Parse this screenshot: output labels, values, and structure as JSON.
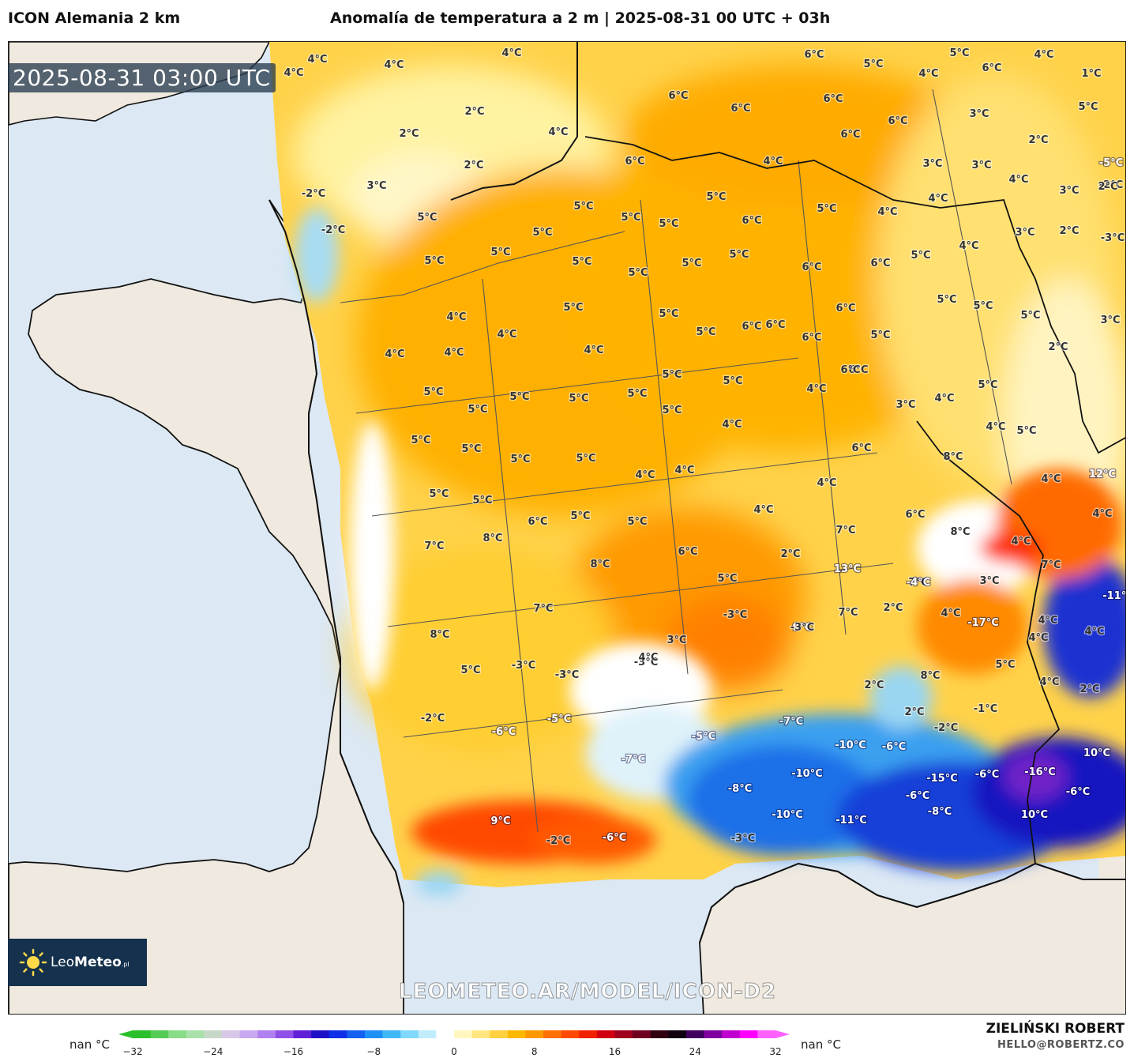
{
  "header": {
    "model_name": "ICON Alemania 2 km",
    "title": "Anomalía de temperatura a 2 m | 2025-08-31 00 UTC + 03h"
  },
  "map": {
    "time_badge": "2025-08-31 03:00 UTC",
    "watermark": "LEOMETEO.AR/MODEL/ICON-D2",
    "logo": {
      "brand_light": "Leo",
      "brand_bold": "Meteo",
      "suffix": ".pl",
      "icon": "sun-icon"
    },
    "labels": [
      {
        "t": "4°C"
      },
      {
        "t": "4°C"
      },
      {
        "t": "4°C"
      },
      {
        "t": "4°C"
      },
      {
        "t": "6°C"
      },
      {
        "t": "5°C"
      },
      {
        "t": "5°C"
      },
      {
        "t": "4°C"
      },
      {
        "t": "6°C"
      },
      {
        "t": "1°C"
      },
      {
        "t": "2°C"
      },
      {
        "t": "2°C"
      },
      {
        "t": "6°C"
      },
      {
        "t": "6°C"
      },
      {
        "t": "6°C"
      },
      {
        "t": "6°C"
      },
      {
        "t": "4°C"
      },
      {
        "t": "3°C"
      },
      {
        "t": "5°C"
      },
      {
        "t": "2°C"
      },
      {
        "t": "2°C"
      },
      {
        "t": "4°C"
      },
      {
        "t": "6°C"
      },
      {
        "t": "6°C"
      },
      {
        "t": "4°C"
      },
      {
        "t": "3°C"
      },
      {
        "t": "3°C"
      },
      {
        "t": "-5°C"
      },
      {
        "t": "-2°C"
      },
      {
        "t": "3°C"
      },
      {
        "t": "5°C"
      },
      {
        "t": "5°C"
      },
      {
        "t": "5°C"
      },
      {
        "t": "5°C"
      },
      {
        "t": "5°C"
      },
      {
        "t": "4°C"
      },
      {
        "t": "4°C"
      },
      {
        "t": "3°C"
      },
      {
        "t": "-2°C"
      },
      {
        "t": "2°C"
      },
      {
        "t": "-2°C"
      },
      {
        "t": "5°C"
      },
      {
        "t": "5°C"
      },
      {
        "t": "5°C"
      },
      {
        "t": "5°C"
      },
      {
        "t": "3°C"
      },
      {
        "t": "2°C"
      },
      {
        "t": "-3°C"
      },
      {
        "t": "5°C"
      },
      {
        "t": "5°C"
      },
      {
        "t": "6°C"
      },
      {
        "t": "6°C"
      },
      {
        "t": "5°C"
      },
      {
        "t": "5°C"
      },
      {
        "t": "6°C"
      },
      {
        "t": "4°C"
      },
      {
        "t": "5°C"
      },
      {
        "t": "4°C"
      },
      {
        "t": "4°C"
      },
      {
        "t": "4°C"
      },
      {
        "t": "5°C"
      },
      {
        "t": "6°C"
      },
      {
        "t": "5°C"
      },
      {
        "t": "6°C"
      },
      {
        "t": "5°C"
      },
      {
        "t": "5°C"
      },
      {
        "t": "5°C"
      },
      {
        "t": "3°C"
      },
      {
        "t": "4°C"
      },
      {
        "t": "4°C"
      },
      {
        "t": "4°C"
      },
      {
        "t": "5°C"
      },
      {
        "t": "6°C"
      },
      {
        "t": "6°C"
      },
      {
        "t": "6°C"
      },
      {
        "t": "5°C"
      },
      {
        "t": "2°C"
      },
      {
        "t": "6°C"
      },
      {
        "t": "5°C"
      },
      {
        "t": "5°C"
      },
      {
        "t": "5°C"
      },
      {
        "t": "5°C"
      },
      {
        "t": "5°C"
      },
      {
        "t": "5°C"
      },
      {
        "t": "5°C"
      },
      {
        "t": "5°C"
      },
      {
        "t": "4°C"
      },
      {
        "t": "4°C"
      },
      {
        "t": "3°C"
      },
      {
        "t": "5°C"
      },
      {
        "t": "5°C"
      },
      {
        "t": "5°C"
      },
      {
        "t": "5°C"
      },
      {
        "t": "5°C"
      },
      {
        "t": "4°C"
      },
      {
        "t": "4°C"
      },
      {
        "t": "4°C"
      },
      {
        "t": "6°C"
      },
      {
        "t": "4°C"
      },
      {
        "t": "5°C"
      },
      {
        "t": "5°C"
      },
      {
        "t": "5°C"
      },
      {
        "t": "6°C"
      },
      {
        "t": "5°C"
      },
      {
        "t": "5°C"
      },
      {
        "t": "4°C"
      },
      {
        "t": "4°C"
      },
      {
        "t": "6°C"
      },
      {
        "t": "7°C"
      },
      {
        "t": "8°C"
      },
      {
        "t": "12°C"
      },
      {
        "t": "4°C"
      },
      {
        "t": "4°C"
      },
      {
        "t": "7°C"
      },
      {
        "t": "8°C"
      },
      {
        "t": "6°C"
      },
      {
        "t": "2°C"
      },
      {
        "t": "13°C"
      },
      {
        "t": "8°C"
      },
      {
        "t": "4°C"
      },
      {
        "t": "7°C"
      },
      {
        "t": "8°C"
      },
      {
        "t": "5°C"
      },
      {
        "t": "3°C"
      },
      {
        "t": "7°C"
      },
      {
        "t": "2°C"
      },
      {
        "t": "9°C"
      },
      {
        "t": "7°C"
      },
      {
        "t": "4°C"
      },
      {
        "t": "-17°C"
      },
      {
        "t": "4°C"
      },
      {
        "t": "-11°C"
      },
      {
        "t": "4°C"
      },
      {
        "t": "4°C"
      },
      {
        "t": "7°C"
      },
      {
        "t": "8°C"
      },
      {
        "t": "-3°C"
      },
      {
        "t": "-3°C"
      },
      {
        "t": "3°C"
      },
      {
        "t": "-3°C"
      },
      {
        "t": "4°C"
      },
      {
        "t": "-3°C"
      },
      {
        "t": "-3°C"
      },
      {
        "t": "5°C"
      },
      {
        "t": "2°C"
      },
      {
        "t": "8°C"
      },
      {
        "t": "5°C"
      },
      {
        "t": "4°C"
      },
      {
        "t": "2°C"
      },
      {
        "t": "-2°C"
      },
      {
        "t": "-5°C"
      },
      {
        "t": "-6°C"
      },
      {
        "t": "-5°C"
      },
      {
        "t": "-7°C"
      },
      {
        "t": "2°C"
      },
      {
        "t": "-2°C"
      },
      {
        "t": "-1°C"
      },
      {
        "t": "-4°C"
      },
      {
        "t": "-7°C"
      },
      {
        "t": "-10°C"
      },
      {
        "t": "-6°C"
      },
      {
        "t": "-6°C"
      },
      {
        "t": "-8°C"
      },
      {
        "t": "-10°C"
      },
      {
        "t": "-15°C"
      },
      {
        "t": "-8°C"
      },
      {
        "t": "-16°C"
      },
      {
        "t": "-6°C"
      },
      {
        "t": "-6°C"
      },
      {
        "t": "-10°C"
      },
      {
        "t": "-11°C"
      },
      {
        "t": "10°C"
      },
      {
        "t": "10°C"
      },
      {
        "t": "9°C"
      },
      {
        "t": "-2°C"
      },
      {
        "t": "-6°C"
      },
      {
        "t": "-3°C"
      }
    ]
  },
  "legend": {
    "nan_left": "nan °C",
    "nan_right": "nan °C",
    "ticks": [
      "−32",
      "−24",
      "−16",
      "−8",
      "0",
      "8",
      "16",
      "24",
      "32"
    ],
    "tick_values": [
      -32,
      -24,
      -16,
      -8,
      0,
      8,
      16,
      24,
      32
    ],
    "range": [
      -32,
      32
    ],
    "colors": [
      "#2bc02b",
      "#55cc55",
      "#88dd88",
      "#aae0aa",
      "#c8d8c8",
      "#d8c8e8",
      "#c8a8f0",
      "#b080f0",
      "#9050e8",
      "#6020d8",
      "#2010c8",
      "#1030e8",
      "#1460f0",
      "#1e90f8",
      "#40b8f8",
      "#80d8fa",
      "#c0ecfc",
      "#ffffff",
      "#fff7c0",
      "#ffe680",
      "#ffd040",
      "#ffb800",
      "#ff9800",
      "#ff7000",
      "#ff4800",
      "#f02000",
      "#d00010",
      "#a00020",
      "#700020",
      "#300010",
      "#100010",
      "#400060",
      "#8000a0",
      "#c000d0",
      "#ff00ff",
      "#ff60ff"
    ]
  },
  "footer": {
    "author": "ZIELIŃSKI ROBERT",
    "email": "HELLO@ROBERTZ.CO"
  }
}
